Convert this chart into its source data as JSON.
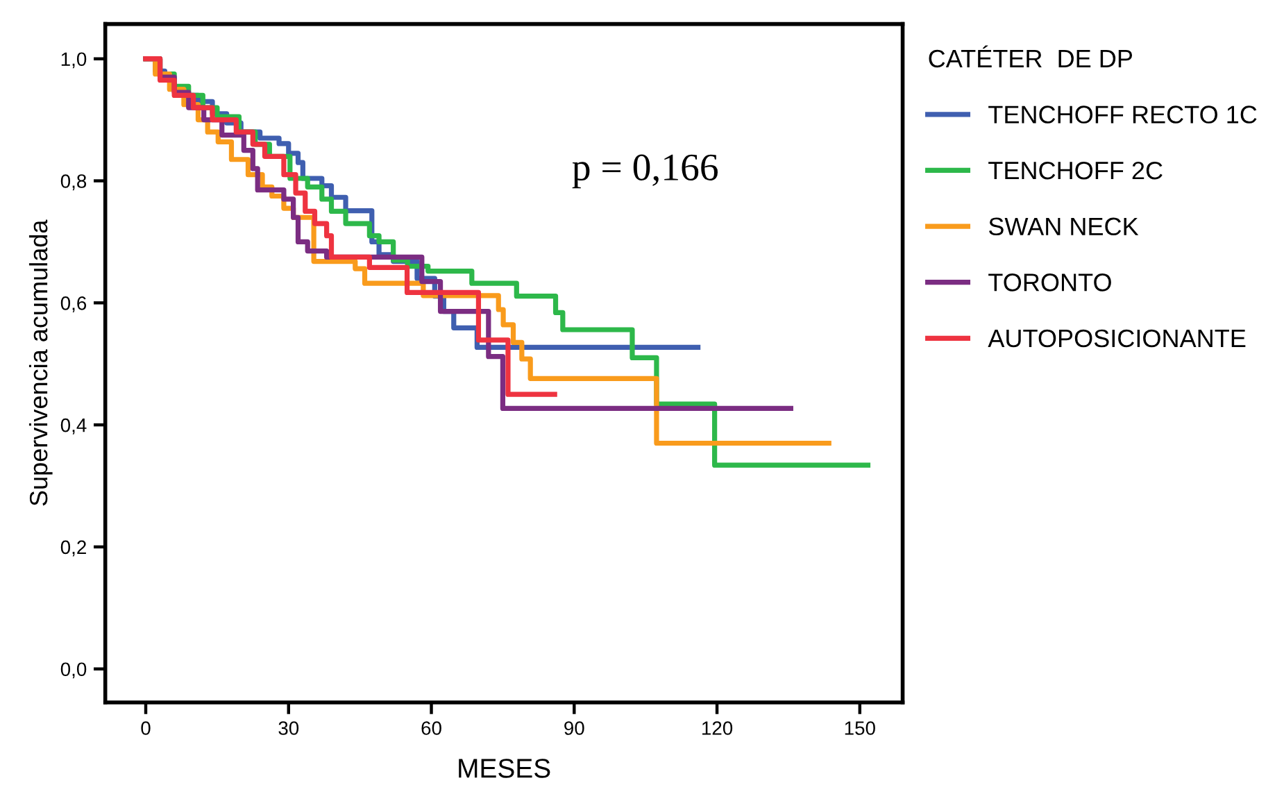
{
  "chart_data": {
    "type": "step",
    "xlabel": "MESES",
    "ylabel": "Supervivencia acumulada",
    "legend_title": "CATÉTER  DE DP",
    "annotations": [
      "p = 0,166"
    ],
    "xlim": [
      -8.5,
      159
    ],
    "ylim": [
      -0.055,
      1.057
    ],
    "xticks": [
      0,
      30,
      60,
      90,
      120,
      150
    ],
    "yticks": [
      {
        "value": 0,
        "label": "0,0"
      },
      {
        "value": 0.2,
        "label": "0,2"
      },
      {
        "value": 0.4,
        "label": "0,4"
      },
      {
        "value": 0.6,
        "label": "0,6"
      },
      {
        "value": 0.8,
        "label": "0,8"
      },
      {
        "value": 1.0,
        "label": "1,0"
      }
    ],
    "grid": false,
    "legend": "right",
    "marker": "none",
    "line_style": "solid",
    "series": [
      {
        "name": "TENCHOFF RECTO 1C",
        "color": "#3f5fb0",
        "x": [
          0,
          2,
          4,
          6,
          8,
          11,
          14,
          17,
          20,
          24,
          28,
          30,
          32,
          33,
          37,
          39,
          42,
          47.5,
          49,
          52,
          57,
          60.7,
          62.6,
          64.7,
          69.6,
          116
        ],
        "values": [
          1.0,
          0.98,
          0.965,
          0.95,
          0.94,
          0.93,
          0.91,
          0.895,
          0.88,
          0.87,
          0.861,
          0.845,
          0.83,
          0.804,
          0.792,
          0.773,
          0.751,
          0.7,
          0.679,
          0.668,
          0.64,
          0.611,
          0.586,
          0.559,
          0.527,
          0.527
        ]
      },
      {
        "name": "TENCHOFF 2C",
        "color": "#2db84a",
        "x": [
          0,
          3,
          6,
          9,
          12,
          15,
          19.6,
          23,
          26,
          30.3,
          34,
          37,
          39,
          42,
          47,
          49,
          52,
          55,
          59.3,
          68.5,
          77.9,
          86.1,
          87.6,
          102.2,
          107.3,
          119.5,
          151.7
        ],
        "values": [
          1.0,
          0.975,
          0.955,
          0.94,
          0.92,
          0.905,
          0.88,
          0.86,
          0.84,
          0.804,
          0.79,
          0.77,
          0.75,
          0.73,
          0.71,
          0.7,
          0.67,
          0.66,
          0.652,
          0.632,
          0.611,
          0.584,
          0.556,
          0.51,
          0.434,
          0.334,
          0.334
        ]
      },
      {
        "name": "SWAN NECK",
        "color": "#f99b1c",
        "x": [
          0,
          2,
          5,
          8,
          11,
          13,
          15.2,
          18,
          21.5,
          24.5,
          26.5,
          29,
          31,
          35.3,
          44,
          46,
          58.3,
          74.1,
          75.1,
          77.2,
          79,
          80.8,
          107.3,
          143.5
        ],
        "values": [
          1.0,
          0.975,
          0.95,
          0.925,
          0.9,
          0.88,
          0.864,
          0.835,
          0.81,
          0.79,
          0.775,
          0.755,
          0.74,
          0.668,
          0.656,
          0.632,
          0.612,
          0.589,
          0.564,
          0.535,
          0.508,
          0.476,
          0.37,
          0.37
        ]
      },
      {
        "name": "TORONTO",
        "color": "#7b2d82",
        "x": [
          0,
          3,
          6,
          9,
          12.2,
          16,
          20.6,
          22.5,
          23.5,
          29,
          31,
          32,
          34,
          38,
          58,
          61.9,
          72,
          75,
          135.5
        ],
        "values": [
          1.0,
          0.97,
          0.945,
          0.92,
          0.9,
          0.875,
          0.85,
          0.82,
          0.785,
          0.77,
          0.74,
          0.7,
          0.685,
          0.675,
          0.635,
          0.586,
          0.512,
          0.427,
          0.427
        ]
      },
      {
        "name": "AUTOPOSICIONANTE",
        "color": "#ee3340",
        "x": [
          0,
          3,
          6,
          10,
          14,
          19,
          22.5,
          25,
          29,
          31.5,
          33.5,
          35.5,
          38,
          39,
          47,
          54.9,
          69.9,
          76.1,
          85.9
        ],
        "values": [
          1.0,
          0.965,
          0.94,
          0.92,
          0.9,
          0.88,
          0.86,
          0.84,
          0.81,
          0.78,
          0.75,
          0.73,
          0.71,
          0.675,
          0.658,
          0.617,
          0.539,
          0.45,
          0.45
        ]
      }
    ]
  }
}
